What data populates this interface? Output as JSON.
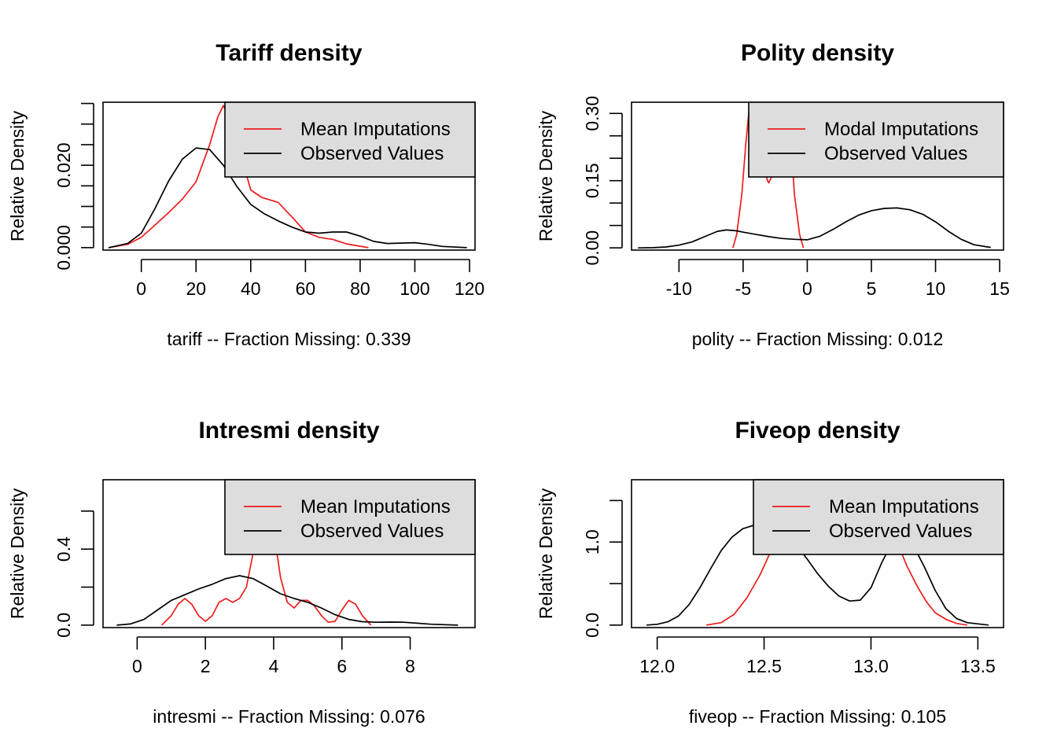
{
  "colors": {
    "imputed": "#ee1c1c",
    "observed": "#000000",
    "legend_bg": "#dddddd"
  },
  "chart_data": [
    {
      "type": "line",
      "title": "Tariff density",
      "xlabel": "tariff   --  Fraction Missing: 0.339",
      "ylabel": "Relative Density",
      "xlim": [
        -14,
        122
      ],
      "ylim": [
        -0.0006,
        0.0353
      ],
      "x_ticks": [
        0,
        20,
        40,
        60,
        80,
        100,
        120
      ],
      "y_ticks": [
        0.0,
        0.005,
        0.01,
        0.015,
        0.02,
        0.025,
        0.03,
        0.035
      ],
      "y_tick_labels": [
        {
          "value": 0.0,
          "label": "0.000"
        },
        {
          "value": 0.02,
          "label": "0.020"
        }
      ],
      "legend": {
        "position": "top-right",
        "entries": [
          "Mean Imputations",
          "Observed Values"
        ]
      },
      "series": [
        {
          "name": "Mean Imputations",
          "color_key": "imputed",
          "x": [
            -12,
            -5,
            0,
            5,
            10,
            15,
            20,
            25,
            28,
            30,
            33,
            36,
            40,
            44,
            50,
            55,
            60,
            65,
            70,
            75,
            83
          ],
          "y": [
            0,
            0.0008,
            0.0025,
            0.0055,
            0.0085,
            0.0118,
            0.016,
            0.025,
            0.0318,
            0.0345,
            0.0305,
            0.0235,
            0.014,
            0.0122,
            0.011,
            0.0075,
            0.0038,
            0.0025,
            0.002,
            0.0009,
            0
          ]
        },
        {
          "name": "Observed Values",
          "color_key": "observed",
          "x": [
            -12,
            -5,
            0,
            5,
            10,
            15,
            20,
            25,
            30,
            35,
            40,
            45,
            50,
            55,
            60,
            65,
            70,
            75,
            80,
            85,
            90,
            95,
            100,
            105,
            110,
            119
          ],
          "y": [
            0,
            0.001,
            0.0035,
            0.0095,
            0.0162,
            0.0215,
            0.0242,
            0.0238,
            0.02,
            0.0148,
            0.0105,
            0.0082,
            0.0065,
            0.005,
            0.0038,
            0.0035,
            0.0038,
            0.0038,
            0.0028,
            0.0015,
            0.001,
            0.0011,
            0.0012,
            0.0008,
            0.0003,
            0
          ]
        }
      ]
    },
    {
      "type": "line",
      "title": "Polity density",
      "xlabel": "polity   --  Fraction Missing: 0.012",
      "ylabel": "Relative Density",
      "xlim": [
        -13.7,
        15.3
      ],
      "ylim": [
        -0.005,
        0.325
      ],
      "x_ticks": [
        -10,
        -5,
        0,
        5,
        10,
        15
      ],
      "y_ticks": [
        0.0,
        0.05,
        0.1,
        0.15,
        0.2,
        0.25,
        0.3
      ],
      "y_tick_labels": [
        {
          "value": 0.0,
          "label": "0.00"
        },
        {
          "value": 0.15,
          "label": "0.15"
        },
        {
          "value": 0.3,
          "label": "0.30"
        }
      ],
      "legend": {
        "position": "top-right",
        "entries": [
          "Modal Imputations",
          "Observed Values"
        ]
      },
      "series": [
        {
          "name": "Modal Imputations",
          "color_key": "imputed",
          "x": [
            -5.8,
            -5.5,
            -5.1,
            -4.8,
            -4.5,
            -4.0,
            -3.5,
            -3.1,
            -3.0,
            -2.6,
            -2.0,
            -1.6,
            -1.3,
            -1.0,
            -0.6,
            -0.3
          ],
          "y": [
            0,
            0.03,
            0.12,
            0.23,
            0.32,
            0.33,
            0.2,
            0.15,
            0.145,
            0.17,
            0.33,
            0.33,
            0.25,
            0.12,
            0.03,
            0
          ]
        },
        {
          "name": "Observed Values",
          "color_key": "observed",
          "x": [
            -13.2,
            -12,
            -11,
            -10,
            -9,
            -8,
            -7,
            -6.3,
            -5.5,
            -5,
            -4,
            -3,
            -2,
            -1,
            0,
            1,
            2,
            3,
            4,
            5,
            6,
            7,
            8,
            9,
            10,
            11,
            12,
            13,
            14.3
          ],
          "y": [
            0,
            0.0005,
            0.002,
            0.006,
            0.013,
            0.025,
            0.037,
            0.04,
            0.038,
            0.035,
            0.03,
            0.025,
            0.021,
            0.019,
            0.018,
            0.026,
            0.041,
            0.058,
            0.073,
            0.083,
            0.088,
            0.089,
            0.085,
            0.075,
            0.058,
            0.037,
            0.019,
            0.007,
            0.001
          ]
        }
      ]
    },
    {
      "type": "line",
      "title": "Intresmi density",
      "xlabel": "intresmi   --  Fraction Missing: 0.076",
      "ylabel": "Relative Density",
      "xlim": [
        -1.0,
        9.9
      ],
      "ylim": [
        -0.013,
        0.765
      ],
      "x_ticks": [
        0,
        2,
        4,
        6,
        8
      ],
      "y_ticks": [
        0.0,
        0.2,
        0.4,
        0.6
      ],
      "y_tick_labels": [
        {
          "value": 0.0,
          "label": "0.0"
        },
        {
          "value": 0.4,
          "label": "0.4"
        }
      ],
      "legend": {
        "position": "top-right",
        "entries": [
          "Mean Imputations",
          "Observed Values"
        ]
      },
      "series": [
        {
          "name": "Mean Imputations",
          "color_key": "imputed",
          "x": [
            0.72,
            1.0,
            1.2,
            1.4,
            1.6,
            1.8,
            2.0,
            2.2,
            2.4,
            2.6,
            2.8,
            3.0,
            3.2,
            3.4,
            3.6,
            3.8,
            4.0,
            4.2,
            4.4,
            4.6,
            4.8,
            5.0,
            5.2,
            5.4,
            5.6,
            5.8,
            6.0,
            6.2,
            6.4,
            6.6,
            6.85
          ],
          "y": [
            0,
            0.05,
            0.11,
            0.14,
            0.11,
            0.05,
            0.02,
            0.05,
            0.12,
            0.14,
            0.12,
            0.14,
            0.2,
            0.38,
            0.62,
            0.75,
            0.5,
            0.25,
            0.12,
            0.09,
            0.13,
            0.13,
            0.1,
            0.05,
            0.015,
            0.02,
            0.08,
            0.13,
            0.11,
            0.05,
            0
          ]
        },
        {
          "name": "Observed Values",
          "color_key": "observed",
          "x": [
            -0.6,
            -0.2,
            0.2,
            0.6,
            1.0,
            1.4,
            1.8,
            2.2,
            2.6,
            3.0,
            3.4,
            3.8,
            4.2,
            4.6,
            5.0,
            5.4,
            5.8,
            6.2,
            6.6,
            7.0,
            7.4,
            7.8,
            8.2,
            8.6,
            9.4
          ],
          "y": [
            0,
            0.006,
            0.03,
            0.08,
            0.13,
            0.16,
            0.19,
            0.215,
            0.245,
            0.26,
            0.245,
            0.205,
            0.165,
            0.14,
            0.12,
            0.09,
            0.055,
            0.03,
            0.018,
            0.015,
            0.016,
            0.015,
            0.01,
            0.005,
            0
          ]
        }
      ]
    },
    {
      "type": "line",
      "title": "Fiveop density",
      "xlabel": "fiveop   --  Fraction Missing: 0.105",
      "ylabel": "Relative Density",
      "xlim": [
        11.88,
        13.62
      ],
      "ylim": [
        -0.03,
        1.75
      ],
      "x_ticks": [
        12.0,
        12.5,
        13.0,
        13.5
      ],
      "x_tick_labels": [
        "12.0",
        "12.5",
        "13.0",
        "13.5"
      ],
      "y_ticks": [
        0.0,
        0.5,
        1.0,
        1.5
      ],
      "y_tick_labels": [
        {
          "value": 0.0,
          "label": "0.0"
        },
        {
          "value": 1.0,
          "label": "1.0"
        }
      ],
      "legend": {
        "position": "top-right",
        "entries": [
          "Mean Imputations",
          "Observed Values"
        ]
      },
      "series": [
        {
          "name": "Mean Imputations",
          "color_key": "imputed",
          "x": [
            12.23,
            12.3,
            12.36,
            12.42,
            12.48,
            12.53,
            12.57,
            12.6,
            13.1,
            13.13,
            13.17,
            13.22,
            13.26,
            13.3,
            13.35,
            13.4,
            13.45
          ],
          "y": [
            0,
            0.03,
            0.13,
            0.33,
            0.6,
            0.88,
            1.05,
            1.15,
            1.1,
            0.95,
            0.7,
            0.45,
            0.28,
            0.15,
            0.07,
            0.02,
            0
          ]
        },
        {
          "name": "Observed Values",
          "color_key": "observed",
          "x": [
            11.95,
            12.0,
            12.05,
            12.1,
            12.15,
            12.2,
            12.25,
            12.3,
            12.35,
            12.4,
            12.45,
            12.5,
            12.55,
            12.6,
            12.65,
            12.7,
            12.75,
            12.8,
            12.85,
            12.9,
            12.95,
            13.0,
            13.05,
            13.1,
            13.15,
            13.2,
            13.25,
            13.3,
            13.35,
            13.4,
            13.45,
            13.55
          ],
          "y": [
            0,
            0.01,
            0.04,
            0.11,
            0.25,
            0.45,
            0.68,
            0.9,
            1.06,
            1.16,
            1.2,
            1.22,
            1.2,
            1.1,
            0.97,
            0.8,
            0.62,
            0.47,
            0.35,
            0.29,
            0.3,
            0.45,
            0.75,
            1.0,
            1.08,
            0.95,
            0.7,
            0.42,
            0.2,
            0.08,
            0.03,
            0
          ]
        }
      ]
    }
  ]
}
